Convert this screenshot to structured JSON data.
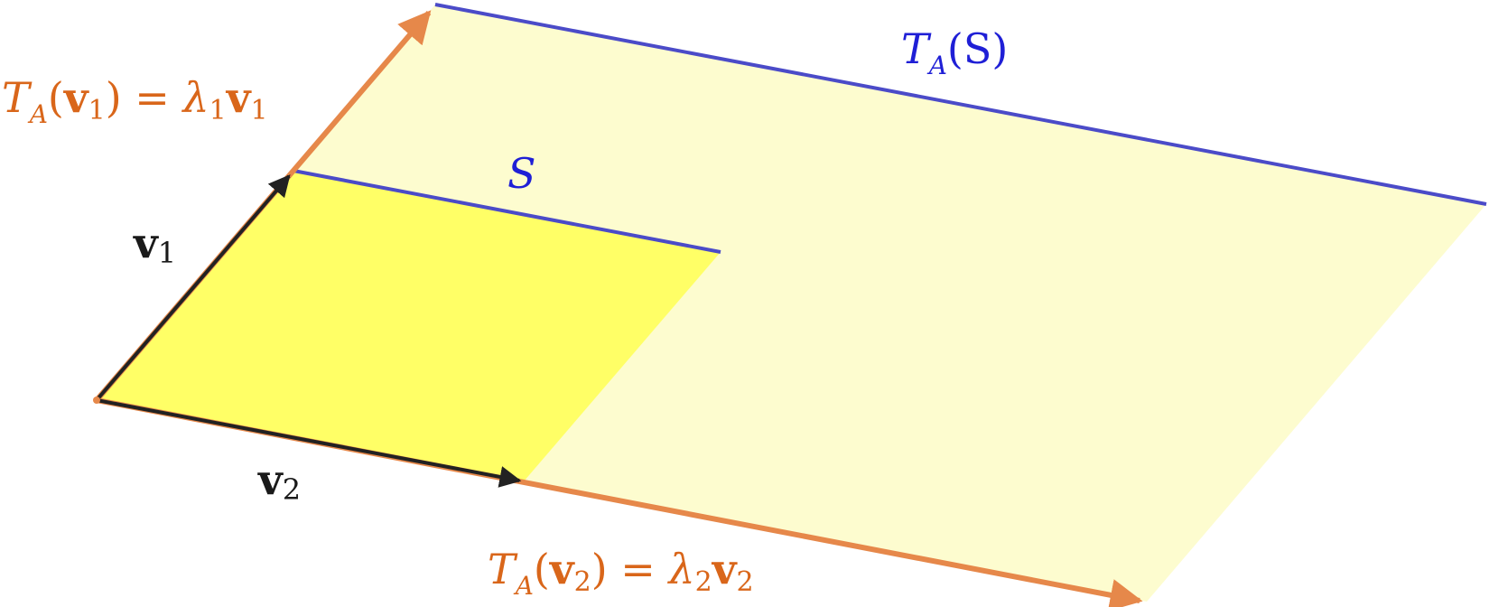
{
  "colors": {
    "background": "#ffffff",
    "large_fill": "#fdfccf",
    "small_fill": "#ffff66",
    "edge_blue": "#4b4bc8",
    "label_blue": "#1f1fd6",
    "arrow_orange": "#e6884a",
    "label_orange": "#d9661a",
    "arrow_black": "#222222"
  },
  "labels": {
    "image_region": {
      "main": "T",
      "sub": "A",
      "tail": "(S)"
    },
    "region": "S",
    "v1": {
      "main": "v",
      "sub": "1"
    },
    "v2": {
      "main": "v",
      "sub": "2"
    },
    "image_v1": {
      "T": "T",
      "A": "A",
      "open": "(",
      "v": "v",
      "vsub": "1",
      "close": ")",
      "eq": " = ",
      "lam": "λ",
      "lsub": "1",
      "v2": "v",
      "v2sub": "1"
    },
    "image_v2": {
      "T": "T",
      "A": "A",
      "open": "(",
      "v": "v",
      "vsub": "2",
      "close": ")",
      "eq": " = ",
      "lam": "λ",
      "lsub": "2",
      "v2": "v",
      "v2sub": "2"
    }
  }
}
